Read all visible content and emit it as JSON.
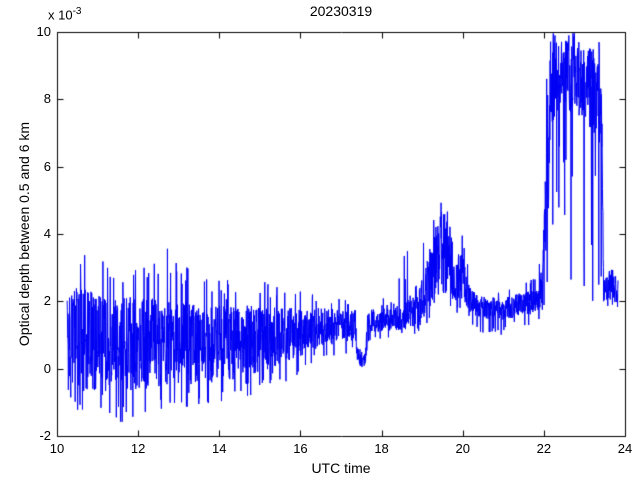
{
  "page": {
    "background_color": "#ffffff",
    "axis_color": "#000000"
  },
  "chart_data": {
    "type": "line",
    "title": "20230319",
    "xlabel": "UTC time",
    "ylabel": "Optical depth between 0.5 and 6 km",
    "exponent_base": "x 10",
    "exponent_power": "-3",
    "xlim": [
      10,
      24
    ],
    "ylim_display": [
      -2,
      10
    ],
    "ylim_actual": [
      -0.002,
      0.01
    ],
    "y_units": "optical depth, values shown are ×10^-3",
    "xticks": [
      10,
      12,
      14,
      16,
      18,
      20,
      22,
      24
    ],
    "yticks": [
      -2,
      0,
      2,
      4,
      6,
      8,
      10
    ],
    "xtick_labels": [
      "10",
      "12",
      "14",
      "16",
      "18",
      "20",
      "22",
      "24"
    ],
    "ytick_labels": [
      "-2",
      "0",
      "2",
      "4",
      "6",
      "8",
      "10"
    ],
    "grid": false,
    "legend": "none",
    "box": true,
    "tick_direction": "in",
    "series": [
      {
        "name": "optical-depth-trace",
        "color": "#0000f5",
        "x_start": 10.25,
        "x_end": 23.83,
        "description": "Noisy lidar optical-depth time series: broad noise band ~(-0.7..2.4) at 10.3-12 narrowing toward 18; dropout to ~0.1-0.45 at 17.45-17.6; aerosol peak rising after 18.6 to max ~5.0 at 19.5 with secondary bump ~3.6-4.1 near 20.0; plateau ~1.5-2.4 from 20.3-22; saturated burst 8-10 (clipped at 10) from 22.1-23.45 with deep downward streaks to ~2; final band ~2-2.8 until 23.83",
        "envelope_units": "1e-3, rows are [utc_hour, core_low, core_high, spike_low, spike_high]",
        "envelope": [
          [
            10.25,
            -0.2,
            2.1,
            -0.8,
            3.2
          ],
          [
            10.45,
            -0.7,
            2.4,
            -1.2,
            3.7
          ],
          [
            11.0,
            -0.75,
            2.3,
            -1.45,
            3.4
          ],
          [
            11.6,
            -0.7,
            2.2,
            -1.6,
            3.2
          ],
          [
            12.2,
            -0.6,
            2.1,
            -1.5,
            3.0
          ],
          [
            12.75,
            -0.55,
            2.05,
            -1.2,
            3.7
          ],
          [
            13.5,
            -0.45,
            1.95,
            -1.1,
            2.7
          ],
          [
            14.5,
            -0.3,
            1.9,
            -0.9,
            2.9
          ],
          [
            15.5,
            0.1,
            1.8,
            -0.5,
            2.4
          ],
          [
            16.5,
            0.65,
            1.8,
            0.25,
            2.2
          ],
          [
            17.35,
            0.85,
            1.75,
            0.5,
            2.0
          ],
          [
            17.45,
            0.08,
            0.45,
            0.05,
            0.6
          ],
          [
            17.6,
            0.08,
            0.45,
            0.05,
            0.6
          ],
          [
            17.66,
            1.05,
            1.75,
            0.8,
            2.0
          ],
          [
            18.3,
            1.15,
            1.8,
            0.95,
            2.15
          ],
          [
            18.6,
            1.15,
            2.0,
            0.95,
            3.6
          ],
          [
            18.85,
            1.25,
            2.5,
            1.05,
            3.2
          ],
          [
            19.1,
            1.6,
            3.1,
            1.3,
            4.0
          ],
          [
            19.3,
            2.1,
            4.1,
            1.7,
            4.9
          ],
          [
            19.5,
            2.9,
            4.9,
            2.3,
            5.05
          ],
          [
            19.65,
            2.4,
            4.2,
            2.0,
            4.6
          ],
          [
            19.8,
            1.9,
            2.9,
            1.55,
            3.3
          ],
          [
            19.97,
            2.1,
            3.6,
            1.8,
            4.1
          ],
          [
            20.15,
            1.7,
            2.5,
            1.35,
            2.9
          ],
          [
            20.4,
            1.5,
            2.15,
            1.05,
            2.45
          ],
          [
            21.0,
            1.45,
            2.1,
            1.0,
            2.4
          ],
          [
            21.85,
            1.65,
            2.4,
            1.25,
            2.7
          ],
          [
            21.97,
            1.9,
            3.2,
            1.6,
            4.3
          ],
          [
            22.07,
            3.0,
            8.0,
            2.0,
            9.5
          ],
          [
            22.18,
            7.2,
            9.7,
            4.2,
            10.0
          ],
          [
            22.5,
            8.0,
            9.8,
            4.5,
            10.0
          ],
          [
            22.62,
            7.6,
            9.7,
            2.6,
            10.0
          ],
          [
            23.0,
            7.4,
            9.6,
            2.4,
            9.95
          ],
          [
            23.25,
            6.9,
            9.6,
            1.9,
            9.9
          ],
          [
            23.42,
            6.5,
            9.4,
            2.0,
            9.8
          ],
          [
            23.47,
            2.0,
            2.85,
            1.85,
            3.0
          ],
          [
            23.83,
            1.95,
            2.8,
            1.8,
            2.9
          ]
        ]
      }
    ]
  }
}
